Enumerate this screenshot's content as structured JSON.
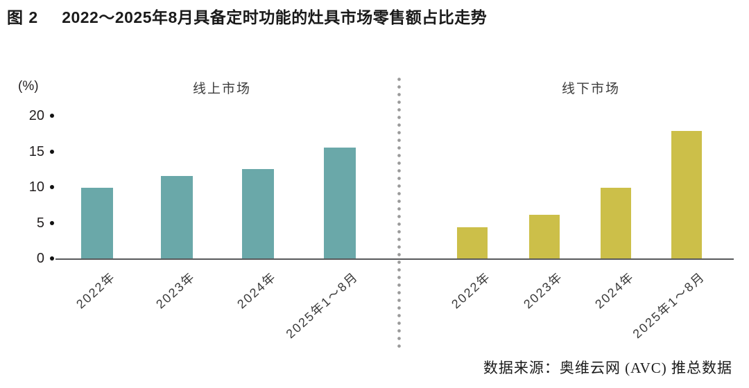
{
  "figure": {
    "label": "图 2",
    "title": "2022～2025年8月具备定时功能的灶具市场零售额占比走势",
    "unit_label": "(%)",
    "source": "数据来源：奥维云网 (AVC) 推总数据"
  },
  "chart_data": {
    "type": "bar",
    "title": "2022～2025年8月具备定时功能的灶具市场零售额占比走势",
    "categories": [
      "2022年",
      "2023年",
      "2024年",
      "2025年1～8月"
    ],
    "series": [
      {
        "name": "线上市场",
        "values": [
          9.9,
          11.6,
          12.5,
          15.5
        ],
        "color": "#6aa8a9"
      },
      {
        "name": "线下市场",
        "values": [
          4.4,
          6.1,
          9.9,
          17.9
        ],
        "color": "#ccbf49"
      }
    ],
    "ylabel": "(%)",
    "yticks": [
      0,
      5,
      10,
      15,
      20
    ],
    "ylim": [
      0,
      20
    ],
    "grid": false,
    "legend_position": "panel titles above each half",
    "layout_note": "two side-by-side panels separated by a vertical dotted divider, shared y axis at left",
    "axis_color": "#58595b",
    "tick_dot_color": "#111111",
    "divider_color": "#9a9a9a"
  }
}
